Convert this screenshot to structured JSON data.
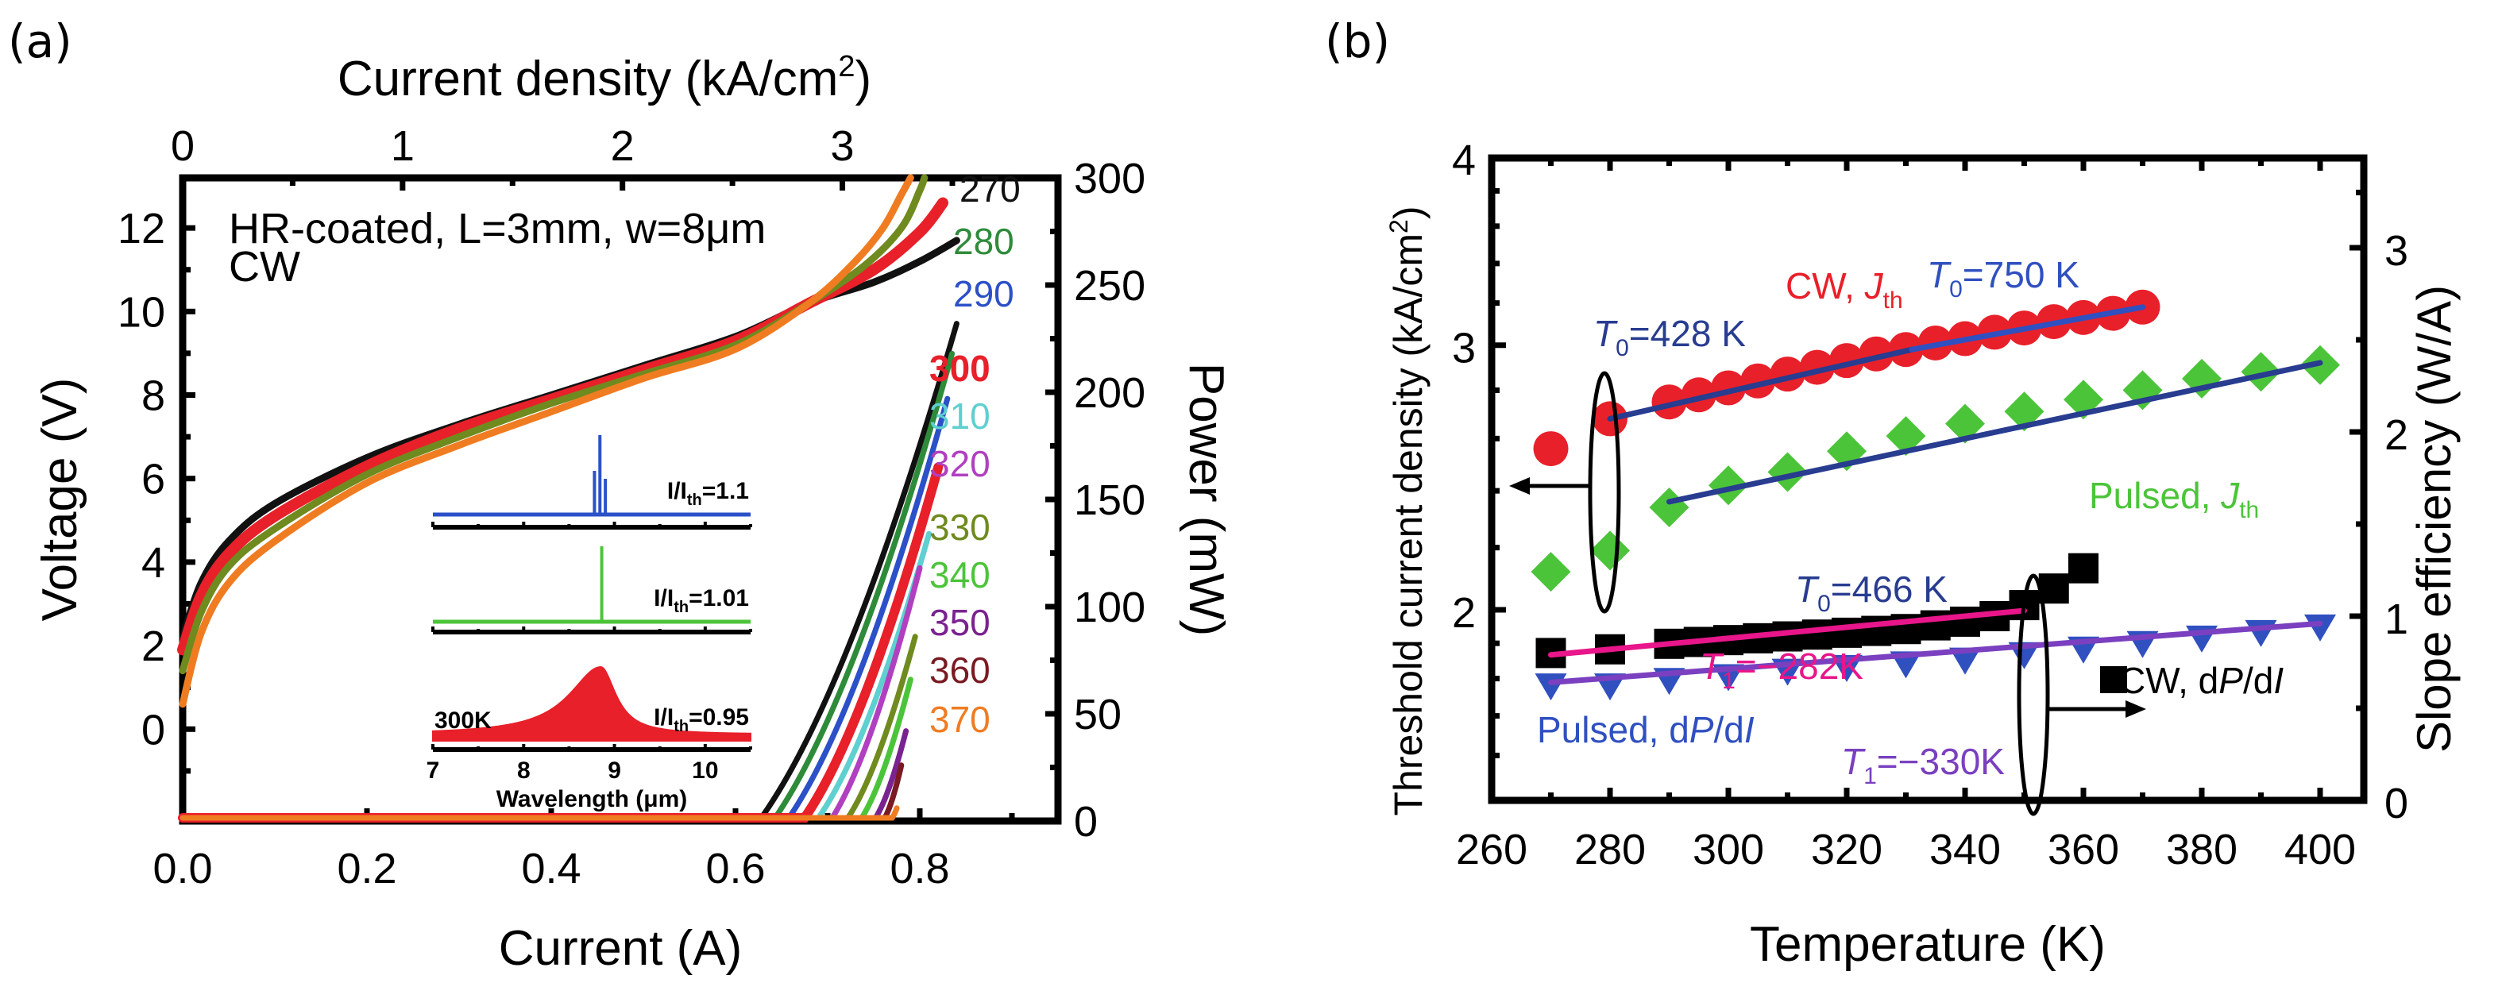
{
  "chart_data": [
    {
      "panel": "(a)",
      "type": "line",
      "title": "",
      "xlabel": "Current (A)",
      "x2label": "Current density (kA/cm²)",
      "ylabel": "Voltage (V)",
      "y2label": "Power (mW)",
      "xlim": [
        0,
        0.95
      ],
      "x2_ticks": [
        "0",
        "1",
        "2",
        "3"
      ],
      "x2_tick_values": [
        0,
        1,
        2,
        3
      ],
      "ylim": [
        -2.2,
        13.2
      ],
      "y2lim": [
        0,
        300
      ],
      "x_ticks": [
        "0.0",
        "0.2",
        "0.4",
        "0.6",
        "0.8"
      ],
      "x_tick_values": [
        0,
        0.2,
        0.4,
        0.6,
        0.8
      ],
      "y_ticks": [
        "0",
        "2",
        "4",
        "6",
        "8",
        "10",
        "12"
      ],
      "y_tick_values": [
        0,
        2,
        4,
        6,
        8,
        10,
        12
      ],
      "y2_ticks": [
        "0",
        "50",
        "100",
        "150",
        "200",
        "250",
        "300"
      ],
      "y2_tick_values": [
        0,
        50,
        100,
        150,
        200,
        250,
        300
      ],
      "annotation": [
        "HR-coated, L=3mm, w=8µm",
        "CW"
      ],
      "voltage_series": [
        {
          "name": "270 K",
          "color": "#111111",
          "x": [
            0,
            0.02,
            0.05,
            0.1,
            0.2,
            0.3,
            0.4,
            0.5,
            0.6,
            0.68,
            0.75,
            0.8,
            0.84
          ],
          "y": [
            2.2,
            3.5,
            4.5,
            5.4,
            6.5,
            7.3,
            8.0,
            8.7,
            9.4,
            10.2,
            10.7,
            11.2,
            11.7
          ]
        },
        {
          "name": "300 K",
          "color": "#e8202a",
          "x": [
            0,
            0.02,
            0.05,
            0.1,
            0.2,
            0.3,
            0.4,
            0.5,
            0.6,
            0.68,
            0.75,
            0.8,
            0.825
          ],
          "y": [
            1.9,
            3.2,
            4.2,
            5.1,
            6.3,
            7.2,
            7.9,
            8.6,
            9.3,
            10.2,
            11.0,
            11.9,
            12.6
          ]
        },
        {
          "name": "330 K",
          "color": "#6f8a1e",
          "x": [
            0,
            0.02,
            0.05,
            0.1,
            0.2,
            0.3,
            0.4,
            0.5,
            0.6,
            0.68,
            0.74,
            0.78,
            0.8,
            0.805
          ],
          "y": [
            1.4,
            2.8,
            3.9,
            4.8,
            6.1,
            7.0,
            7.8,
            8.5,
            9.2,
            10.2,
            11.1,
            12.0,
            12.9,
            13.2
          ]
        },
        {
          "name": "370 K",
          "color": "#f07c22",
          "x": [
            0,
            0.02,
            0.05,
            0.1,
            0.2,
            0.3,
            0.4,
            0.5,
            0.6,
            0.68,
            0.73,
            0.76,
            0.78,
            0.79
          ],
          "y": [
            0.6,
            2.3,
            3.5,
            4.5,
            5.9,
            6.8,
            7.6,
            8.4,
            9.1,
            10.2,
            11.2,
            12.0,
            12.8,
            13.2
          ]
        }
      ],
      "power_series": [
        {
          "name": "270",
          "color": "#111111",
          "threshold_A": 0.628,
          "max_A": 0.84,
          "max_mW": 232
        },
        {
          "name": "280",
          "color": "#2e8b3a",
          "threshold_A": 0.643,
          "max_A": 0.835,
          "max_mW": 218
        },
        {
          "name": "290",
          "color": "#2b50c8",
          "threshold_A": 0.658,
          "max_A": 0.83,
          "max_mW": 197
        },
        {
          "name": "300",
          "color": "#e8202a",
          "threshold_A": 0.675,
          "max_A": 0.82,
          "max_mW": 165
        },
        {
          "name": "310",
          "color": "#5fcfcf",
          "threshold_A": 0.69,
          "max_A": 0.81,
          "max_mW": 134
        },
        {
          "name": "320",
          "color": "#b040c0",
          "threshold_A": 0.705,
          "max_A": 0.8,
          "max_mW": 118
        },
        {
          "name": "330",
          "color": "#6f8a1e",
          "threshold_A": 0.722,
          "max_A": 0.795,
          "max_mW": 86
        },
        {
          "name": "340",
          "color": "#4cc43a",
          "threshold_A": 0.737,
          "max_A": 0.79,
          "max_mW": 66
        },
        {
          "name": "350",
          "color": "#7a2390",
          "threshold_A": 0.752,
          "max_A": 0.785,
          "max_mW": 42
        },
        {
          "name": "360",
          "color": "#7a1a22",
          "threshold_A": 0.762,
          "max_A": 0.78,
          "max_mW": 26
        },
        {
          "name": "370",
          "color": "#f07c22",
          "threshold_A": 0.77,
          "max_A": 0.775,
          "max_mW": 6
        }
      ],
      "inset": {
        "xlabel": "Wavelength (µm)",
        "x_ticks": [
          "7",
          "8",
          "9",
          "10"
        ],
        "x_tick_values": [
          7,
          8,
          9,
          10
        ],
        "xlim": [
          7,
          10.5
        ],
        "spectra": [
          {
            "label": "I/Ith=1.1",
            "label_main": "I/I",
            "label_sub": "th",
            "label_value": "=1.1",
            "color": "#2b50c8",
            "type": "multimode",
            "peaks_um": [
              8.78,
              8.84,
              8.9
            ],
            "peak_heights": [
              0.55,
              1.0,
              0.45
            ]
          },
          {
            "label": "I/Ith=1.01",
            "label_main": "I/I",
            "label_sub": "th",
            "label_value": "=1.01",
            "color": "#4cc43a",
            "type": "singlemode",
            "peaks_um": [
              8.86
            ],
            "peak_heights": [
              1.0
            ]
          },
          {
            "label": "I/Ith=0.95",
            "label_main": "I/I",
            "label_sub": "th",
            "label_value": "=0.95",
            "color": "#e8202a",
            "type": "electroluminescence",
            "peak_um": 8.85,
            "temperature_label": "300K"
          }
        ]
      }
    },
    {
      "panel": "(b)",
      "type": "scatter",
      "title": "",
      "xlabel": "Temperature (K)",
      "ylabel": "Threshold current density (kA/cm²)",
      "y2label": "Slope efficiency (W/A)",
      "xlim": [
        260,
        405
      ],
      "x_ticks": [
        "260",
        "280",
        "300",
        "320",
        "340",
        "360",
        "380",
        "400"
      ],
      "x_tick_values": [
        260,
        280,
        300,
        320,
        340,
        360,
        380,
        400
      ],
      "y_scale": "log",
      "ylim": [
        1.5,
        4
      ],
      "y_ticks": [
        "2",
        "3",
        "4"
      ],
      "y_tick_values": [
        2,
        3,
        4
      ],
      "y2lim": [
        0,
        3.4
      ],
      "y2_ticks": [
        "0",
        "1",
        "2",
        "3"
      ],
      "y2_tick_values": [
        0,
        1,
        2,
        3
      ],
      "series": [
        {
          "name": "CW, Jth",
          "axis": "left",
          "marker": "circle",
          "color": "#e8202a",
          "x": [
            270,
            280,
            290,
            295,
            300,
            305,
            310,
            315,
            320,
            325,
            330,
            335,
            340,
            345,
            350,
            355,
            360,
            365,
            370
          ],
          "y": [
            2.56,
            2.68,
            2.75,
            2.78,
            2.81,
            2.84,
            2.87,
            2.9,
            2.93,
            2.96,
            2.98,
            3.01,
            3.03,
            3.06,
            3.08,
            3.11,
            3.13,
            3.15,
            3.18
          ]
        },
        {
          "name": "Pulsed, Jth",
          "axis": "left",
          "marker": "diamond",
          "color": "#4cc43a",
          "x": [
            270,
            280,
            290,
            300,
            310,
            320,
            330,
            340,
            350,
            360,
            370,
            380,
            390,
            400
          ],
          "y": [
            2.12,
            2.19,
            2.34,
            2.42,
            2.47,
            2.55,
            2.61,
            2.66,
            2.71,
            2.76,
            2.8,
            2.85,
            2.88,
            2.91
          ]
        },
        {
          "name": "CW, dP/dI",
          "axis": "right",
          "marker": "square",
          "color": "#000000",
          "x": [
            270,
            280,
            290,
            295,
            300,
            305,
            310,
            315,
            320,
            325,
            330,
            335,
            340,
            345,
            350,
            355,
            360
          ],
          "y": [
            0.8,
            0.82,
            0.85,
            0.86,
            0.87,
            0.88,
            0.89,
            0.9,
            0.91,
            0.92,
            0.93,
            0.95,
            0.97,
            1.0,
            1.06,
            1.15,
            1.26
          ]
        },
        {
          "name": "Pulsed, dP/dI",
          "axis": "right",
          "marker": "triangle-down",
          "color": "#3050c0",
          "x": [
            270,
            280,
            290,
            300,
            310,
            320,
            330,
            340,
            350,
            360,
            370,
            380,
            390,
            400
          ],
          "y": [
            0.62,
            0.62,
            0.65,
            0.67,
            0.7,
            0.72,
            0.74,
            0.76,
            0.79,
            0.82,
            0.85,
            0.88,
            0.91,
            0.94
          ]
        }
      ],
      "fits": [
        {
          "label": "T0=428 K",
          "sym": "T",
          "sub": "0",
          "value": "=428 K",
          "axis": "left",
          "color": "#283c90",
          "x": [
            280,
            331
          ],
          "y": [
            2.68,
            2.98
          ]
        },
        {
          "label": "T0=750 K",
          "sym": "T",
          "sub": "0",
          "value": "=750 K",
          "axis": "left",
          "color": "#3050c0",
          "x": [
            331,
            370
          ],
          "y": [
            2.98,
            3.18
          ]
        },
        {
          "label": "T0=466 K",
          "sym": "T",
          "sub": "0",
          "value": "=466 K",
          "axis": "left",
          "color": "#283c90",
          "x": [
            290,
            400
          ],
          "y": [
            2.36,
            2.92
          ]
        },
        {
          "label": "T1=−282K",
          "sym": "T",
          "sub": "1",
          "value": "=−282K",
          "axis": "right",
          "color": "#e8168a",
          "x": [
            270,
            350
          ],
          "y": [
            0.79,
            1.03
          ]
        },
        {
          "label": "T1=−330K",
          "sym": "T",
          "sub": "1",
          "value": "=−330K",
          "axis": "right",
          "color": "#7a40c0",
          "x": [
            270,
            400
          ],
          "y": [
            0.64,
            0.96
          ]
        }
      ],
      "legend_labels": [
        {
          "text": "CW, ",
          "italic": "J",
          "sub": "th",
          "color": "#e8202a"
        },
        {
          "text": "Pulsed, ",
          "italic": "J",
          "sub": "th",
          "color": "#4cc43a"
        },
        {
          "text": "CW, d",
          "italic": "P",
          "tail": "/d",
          "italic2": "I",
          "color": "#000000"
        },
        {
          "text": "Pulsed, d",
          "italic": "P",
          "tail": "/d",
          "italic2": "I",
          "color": "#3050c0"
        }
      ]
    }
  ],
  "labels": {
    "panel_a": "(a)",
    "panel_b": "(b)"
  }
}
